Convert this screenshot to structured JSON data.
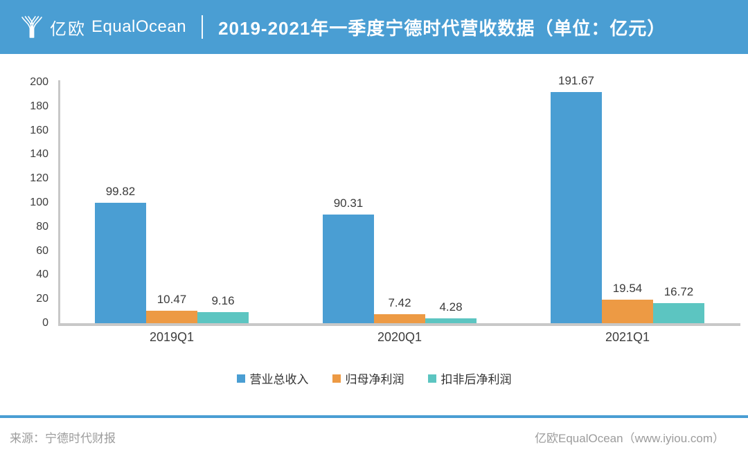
{
  "header": {
    "brand_cn": "亿欧",
    "brand_en": "EqualOcean",
    "title": "2019-2021年一季度宁德时代营收数据（单位：亿元）"
  },
  "chart_data": {
    "type": "bar",
    "title": "2019-2021年一季度宁德时代营收数据",
    "unit": "亿元",
    "categories": [
      "2019Q1",
      "2020Q1",
      "2021Q1"
    ],
    "series": [
      {
        "name": "营业总收入",
        "color": "#4a9ed3",
        "values": [
          99.82,
          90.31,
          191.67
        ]
      },
      {
        "name": "归母净利润",
        "color": "#ed9a44",
        "values": [
          10.47,
          7.42,
          19.54
        ]
      },
      {
        "name": "扣非后净利润",
        "color": "#5cc5c1",
        "values": [
          9.16,
          4.28,
          16.72
        ]
      }
    ],
    "ylim": [
      0,
      200
    ],
    "ytick_step": 20,
    "grid": false,
    "legend_position": "bottom",
    "value_labels_decimals": 2
  },
  "footer": {
    "source": "来源：宁德时代财报",
    "credit": "亿欧EqualOcean（www.iyiou.com）"
  },
  "colors": {
    "header_bg": "#4a9ed3",
    "axis_line": "#c8c8c8",
    "tick_text": "#3d3d3d",
    "value_text": "#3b3b3b",
    "footer_text": "#9c9c9c",
    "footer_divider": "#4a9ed3"
  }
}
